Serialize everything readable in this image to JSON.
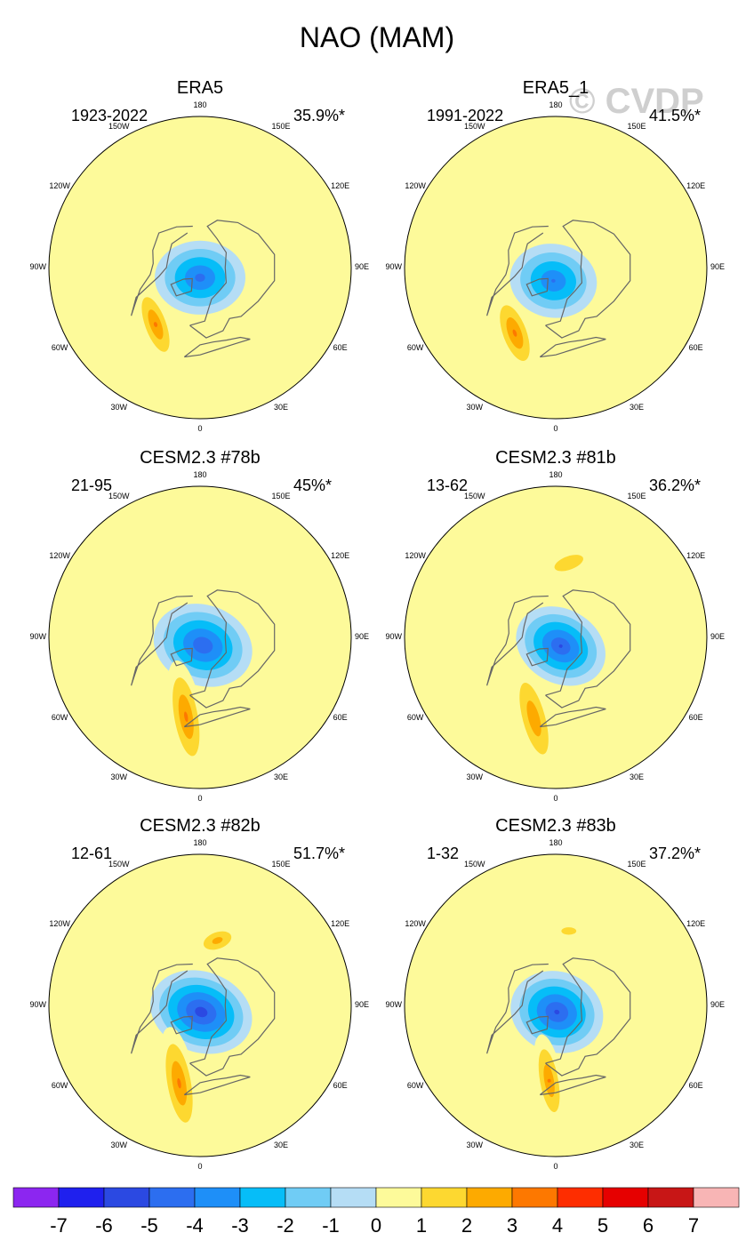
{
  "figure": {
    "title": "NAO (MAM)",
    "watermark": "© CVDP"
  },
  "chart_data": {
    "type": "heatmap",
    "title": "NAO (MAM)",
    "projection": "north-polar-stereographic",
    "lon_labels": [
      "180",
      "150E",
      "120E",
      "90E",
      "60E",
      "30E",
      "0",
      "30W",
      "60W",
      "90W",
      "120W",
      "150W"
    ],
    "panels": [
      {
        "title": "ERA5",
        "period": "1923-2022",
        "pct": "35.9%*",
        "features": [
          {
            "sign": "neg",
            "lon": 0,
            "colat": 6,
            "ax": 27,
            "bx": 22,
            "rot": 0,
            "peak": -4.5
          },
          {
            "sign": "pos",
            "lon": -38,
            "colat": 43,
            "ax": 25,
            "bx": 9,
            "rot": 70,
            "peak": 3.2
          }
        ]
      },
      {
        "title": "ERA5_1",
        "period": "1991-2022",
        "pct": "41.5%*",
        "features": [
          {
            "sign": "neg",
            "lon": -10,
            "colat": 8,
            "ax": 26,
            "bx": 22,
            "rot": 10,
            "peak": -4.2
          },
          {
            "sign": "pos",
            "lon": -32,
            "colat": 46,
            "ax": 25,
            "bx": 10,
            "rot": 70,
            "peak": 3.3
          }
        ]
      },
      {
        "title": "CESM2.3 #78b",
        "period": "21-95",
        "pct": "45%*",
        "features": [
          {
            "sign": "neg",
            "lon": 20,
            "colat": 5,
            "ax": 30,
            "bx": 24,
            "rot": 20,
            "peak": -5.0
          },
          {
            "sign": "pos",
            "lon": -10,
            "colat": 48,
            "ax": 34,
            "bx": 10,
            "rot": 80,
            "peak": 3.3
          }
        ]
      },
      {
        "title": "CESM2.3 #81b",
        "period": "13-62",
        "pct": "36.2%*",
        "features": [
          {
            "sign": "neg",
            "lon": 30,
            "colat": 6,
            "ax": 28,
            "bx": 22,
            "rot": 30,
            "peak": -5.1
          },
          {
            "sign": "pos",
            "lon": -15,
            "colat": 50,
            "ax": 33,
            "bx": 10,
            "rot": 75,
            "peak": 3.0
          },
          {
            "sign": "pos",
            "lon": 170,
            "colat": 45,
            "ax": 18,
            "bx": 8,
            "rot": -20,
            "peak": 2.0
          }
        ]
      },
      {
        "title": "CESM2.3 #82b",
        "period": "12-61",
        "pct": "51.7%*",
        "features": [
          {
            "sign": "neg",
            "lon": 10,
            "colat": 4,
            "ax": 31,
            "bx": 24,
            "rot": 20,
            "peak": -5.7
          },
          {
            "sign": "pos",
            "lon": -15,
            "colat": 48,
            "ax": 34,
            "bx": 10,
            "rot": 80,
            "peak": 3.3
          },
          {
            "sign": "pos",
            "lon": 165,
            "colat": 40,
            "ax": 14,
            "bx": 8,
            "rot": -20,
            "peak": 2.6
          }
        ]
      },
      {
        "title": "CESM2.3 #83b",
        "period": "1-32",
        "pct": "37.2%*",
        "features": [
          {
            "sign": "neg",
            "lon": 10,
            "colat": 4,
            "ax": 28,
            "bx": 24,
            "rot": 20,
            "peak": -5.3
          },
          {
            "sign": "pos",
            "lon": -5,
            "colat": 45,
            "ax": 28,
            "bx": 8,
            "rot": 80,
            "peak": 3.1
          },
          {
            "sign": "pos",
            "lon": 170,
            "colat": 45,
            "ax": 10,
            "bx": 5,
            "rot": 0,
            "peak": 1.8
          }
        ]
      }
    ],
    "colorbar": {
      "ticks": [
        "-7",
        "-6",
        "-5",
        "-4",
        "-3",
        "-2",
        "-1",
        "0",
        "1",
        "2",
        "3",
        "4",
        "5",
        "6",
        "7"
      ],
      "colors": [
        "#8c26f0",
        "#1f20ee",
        "#2b49e2",
        "#2c6ef0",
        "#1e8ff8",
        "#06bdf8",
        "#70ccf5",
        "#b5ddf5",
        "#fdfa9a",
        "#fdd830",
        "#fdaa00",
        "#fd7800",
        "#fe2d00",
        "#e60000",
        "#c81616",
        "#f8b5b5"
      ],
      "units": ""
    }
  }
}
